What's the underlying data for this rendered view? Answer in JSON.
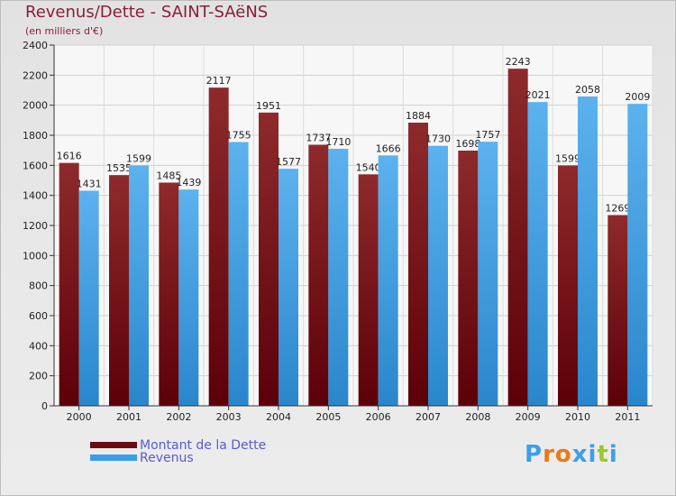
{
  "header": {
    "title": "Revenus/Dette - SAINT-SAëNS",
    "subtitle": "(en milliers d'€)"
  },
  "legend": {
    "items": [
      {
        "label": "Montant de la Dette",
        "color": "#6b0a12"
      },
      {
        "label": "Revenus",
        "color": "#3a9ee8"
      }
    ]
  },
  "logo": {
    "letters": [
      "P",
      "r",
      "o",
      "x",
      "i",
      "t",
      "i"
    ],
    "colors": [
      "#3aa0e8",
      "#e87a1a",
      "#e87a1a",
      "#3aa0e8",
      "#3aa0e8",
      "#9ac92b",
      "#3aa0e8"
    ]
  },
  "chart_data": {
    "type": "bar",
    "title": "Revenus/Dette - SAINT-SAëNS",
    "ylabel": "(en milliers d'€)",
    "categories": [
      "2000",
      "2001",
      "2002",
      "2003",
      "2004",
      "2005",
      "2006",
      "2007",
      "2008",
      "2009",
      "2010",
      "2011"
    ],
    "ylim": [
      0,
      2400
    ],
    "yticks": [
      0,
      200,
      400,
      600,
      800,
      1000,
      1200,
      1400,
      1600,
      1800,
      2000,
      2200,
      2400
    ],
    "grid": true,
    "series": [
      {
        "name": "Montant de la Dette",
        "color": "#7a1518",
        "values": [
          1616,
          1535,
          1485,
          2117,
          1951,
          1737,
          1540,
          1884,
          1698,
          2243,
          1599,
          1269
        ]
      },
      {
        "name": "Revenus",
        "color": "#4aa8ec",
        "values": [
          1431,
          1599,
          1439,
          1755,
          1577,
          1710,
          1666,
          1730,
          1757,
          2021,
          2058,
          2009
        ]
      }
    ]
  }
}
